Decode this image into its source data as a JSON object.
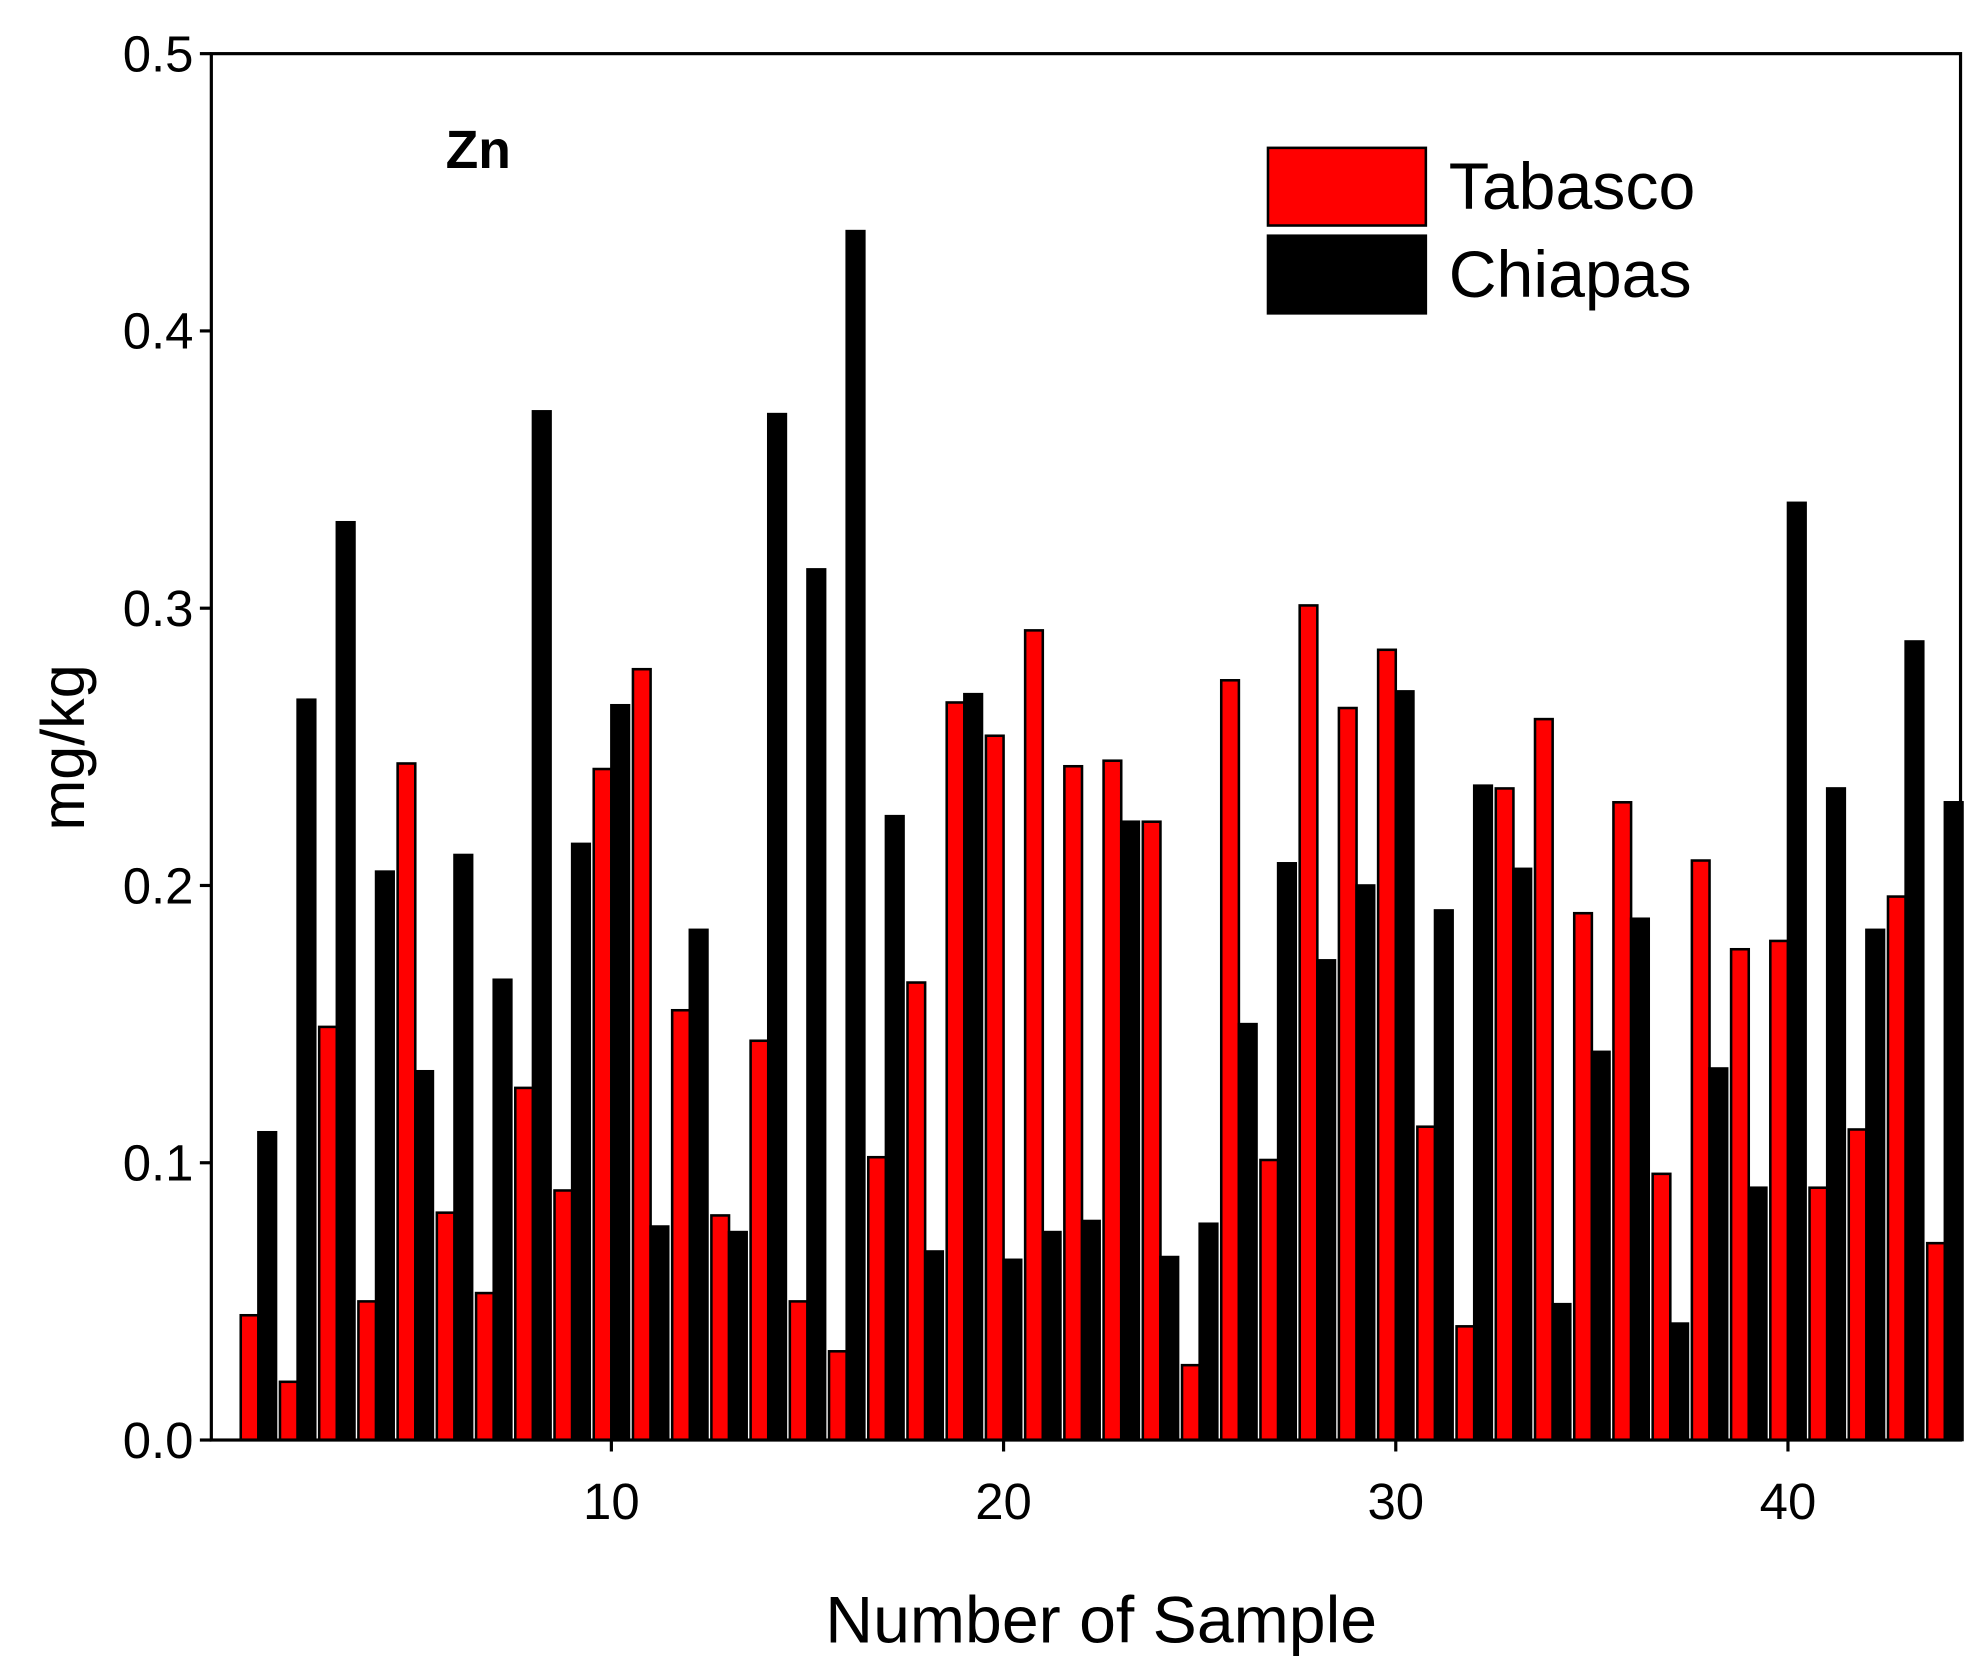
{
  "chart_data": {
    "type": "bar",
    "title": "Zn",
    "xlabel": "Number of Sample",
    "ylabel": "mg/kg",
    "x": [
      1,
      2,
      3,
      4,
      5,
      6,
      7,
      8,
      9,
      10,
      11,
      12,
      13,
      14,
      15,
      16,
      17,
      18,
      19,
      20,
      21,
      22,
      23,
      24,
      25,
      26,
      27,
      28,
      29,
      30,
      31,
      32,
      33,
      34,
      35,
      36,
      37,
      38,
      39,
      40,
      41,
      42,
      43,
      44
    ],
    "series": [
      {
        "name": "Tabasco",
        "color": "#ff0000",
        "values": [
          0.045,
          0.021,
          0.149,
          0.05,
          0.244,
          0.082,
          0.053,
          0.127,
          0.09,
          0.242,
          0.278,
          0.155,
          0.081,
          0.144,
          0.05,
          0.032,
          0.102,
          0.165,
          0.266,
          0.254,
          0.292,
          0.243,
          0.245,
          0.223,
          0.027,
          0.274,
          0.101,
          0.301,
          0.264,
          0.285,
          0.113,
          0.041,
          0.235,
          0.26,
          0.19,
          0.23,
          0.096,
          0.209,
          0.177,
          0.18,
          0.091,
          0.112,
          0.196,
          0.071
        ]
      },
      {
        "name": "Chiapas",
        "color": "#000000",
        "values": [
          0.111,
          0.267,
          0.331,
          0.205,
          0.133,
          0.211,
          0.166,
          0.371,
          0.215,
          0.265,
          0.077,
          0.184,
          0.075,
          0.37,
          0.314,
          0.436,
          0.225,
          0.068,
          0.269,
          0.065,
          0.075,
          0.079,
          0.223,
          0.066,
          0.078,
          0.15,
          0.208,
          0.173,
          0.2,
          0.27,
          0.191,
          0.236,
          0.206,
          0.049,
          0.14,
          0.188,
          0.042,
          0.134,
          0.091,
          0.338,
          0.235,
          0.184,
          0.288,
          0.23
        ]
      }
    ],
    "xlim": [
      -0.2,
      44.4
    ],
    "xticks": [
      10,
      20,
      30,
      40
    ],
    "ylim": [
      0,
      0.5
    ],
    "yticks": [
      {
        "value": 0,
        "label": "0.0"
      },
      0.1,
      0.2,
      0.3,
      0.4,
      0.5
    ],
    "legend": "upper right"
  }
}
